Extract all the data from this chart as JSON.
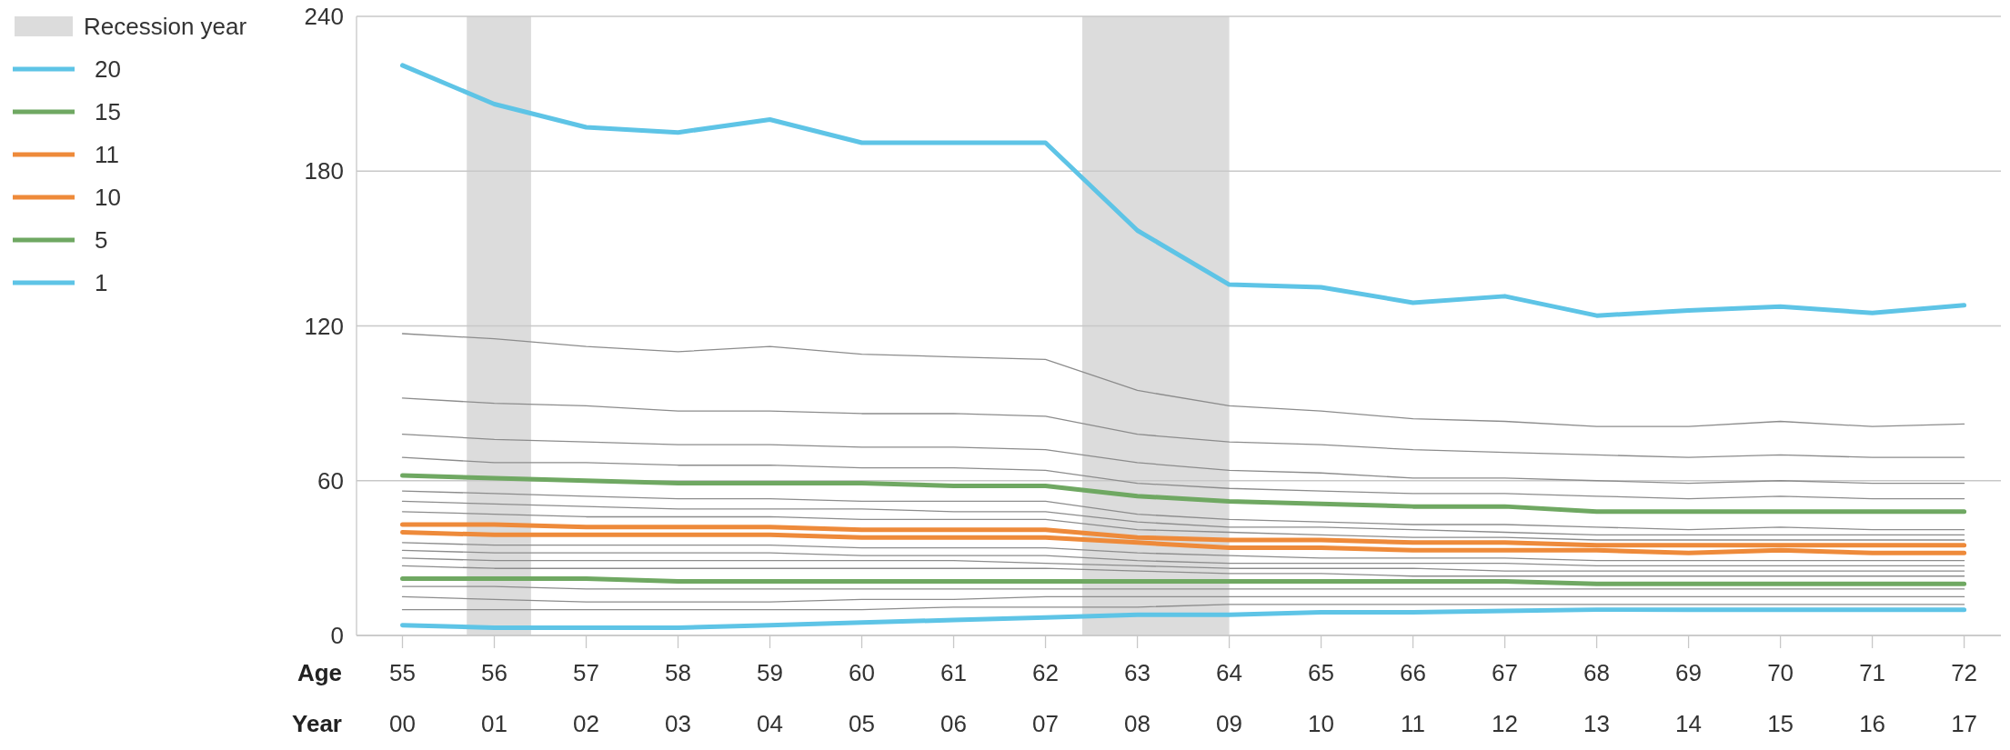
{
  "chart_data": {
    "type": "line",
    "xlabel": "Age",
    "x2label": "Year",
    "xlim": [
      54.5,
      72.4
    ],
    "xticks": [
      55,
      56,
      57,
      58,
      59,
      60,
      61,
      62,
      63,
      64,
      65,
      66,
      67,
      68,
      69,
      70,
      71,
      72
    ],
    "x2lim": [
      1999.5,
      2017.4
    ],
    "x2ticks": [
      {
        "value": 2000,
        "label": "00"
      },
      {
        "value": 2001,
        "label": "01"
      },
      {
        "value": 2002,
        "label": "02"
      },
      {
        "value": 2003,
        "label": "03"
      },
      {
        "value": 2004,
        "label": "04"
      },
      {
        "value": 2005,
        "label": "05"
      },
      {
        "value": 2006,
        "label": "06"
      },
      {
        "value": 2007,
        "label": "07"
      },
      {
        "value": 2008,
        "label": "08"
      },
      {
        "value": 2009,
        "label": "09"
      },
      {
        "value": 2010,
        "label": "10"
      },
      {
        "value": 2011,
        "label": "11"
      },
      {
        "value": 2012,
        "label": "12"
      },
      {
        "value": 2013,
        "label": "13"
      },
      {
        "value": 2014,
        "label": "14"
      },
      {
        "value": 2015,
        "label": "15"
      },
      {
        "value": 2016,
        "label": "16"
      },
      {
        "value": 2017,
        "label": "17"
      }
    ],
    "ylim": [
      0,
      240
    ],
    "yticks": [
      0,
      60,
      120,
      180,
      240
    ],
    "grid": "y",
    "legend": "left",
    "marker": "none",
    "line_style": "solid",
    "x": [
      55,
      56,
      57,
      58,
      59,
      60,
      61,
      62,
      63,
      64,
      65,
      66,
      67,
      68,
      69,
      70,
      71,
      72
    ],
    "bands": [
      {
        "axis": "x",
        "from": 55.7,
        "to": 56.4,
        "color": "#dcdcdc"
      },
      {
        "axis": "x",
        "from": 62.4,
        "to": 64,
        "color": "#dcdcdc"
      }
    ],
    "annotations": [
      "Recession year"
    ],
    "series": [
      {
        "color": "#8c8c8c",
        "values": [
          117,
          115,
          112,
          110,
          112,
          109,
          108,
          107,
          95,
          89,
          87,
          84,
          83,
          81,
          81,
          83,
          81,
          82
        ]
      },
      {
        "color": "#8c8c8c",
        "values": [
          92,
          90,
          89,
          87,
          87,
          86,
          86,
          85,
          78,
          75,
          74,
          72,
          71,
          70,
          69,
          70,
          69,
          69
        ]
      },
      {
        "color": "#8c8c8c",
        "values": [
          78,
          76,
          75,
          74,
          74,
          73,
          73,
          72,
          67,
          64,
          63,
          61,
          61,
          60,
          59,
          60,
          59,
          59
        ]
      },
      {
        "color": "#8c8c8c",
        "values": [
          69,
          67,
          67,
          66,
          66,
          65,
          65,
          64,
          59,
          57,
          56,
          55,
          55,
          54,
          53,
          54,
          53,
          53
        ]
      },
      {
        "color": "#8c8c8c",
        "values": [
          56,
          55,
          54,
          53,
          53,
          52,
          52,
          52,
          47,
          45,
          44,
          43,
          43,
          42,
          41,
          42,
          41,
          41
        ]
      },
      {
        "color": "#8c8c8c",
        "values": [
          52,
          51,
          50,
          49,
          49,
          49,
          48,
          48,
          44,
          42,
          42,
          41,
          40,
          39,
          39,
          39,
          39,
          39
        ]
      },
      {
        "color": "#8c8c8c",
        "values": [
          48,
          47,
          46,
          46,
          46,
          45,
          45,
          45,
          41,
          40,
          39,
          38,
          38,
          37,
          37,
          37,
          37,
          37
        ]
      },
      {
        "color": "#8c8c8c",
        "values": [
          36,
          35,
          35,
          35,
          35,
          34,
          34,
          34,
          32,
          31,
          30,
          30,
          30,
          29,
          29,
          29,
          29,
          29
        ]
      },
      {
        "color": "#8c8c8c",
        "values": [
          33,
          32,
          32,
          32,
          32,
          31,
          31,
          31,
          29,
          28,
          28,
          28,
          28,
          27,
          27,
          27,
          27,
          27
        ]
      },
      {
        "color": "#8c8c8c",
        "values": [
          30,
          29,
          29,
          29,
          29,
          29,
          29,
          28,
          27,
          26,
          26,
          26,
          25,
          25,
          25,
          25,
          25,
          25
        ]
      },
      {
        "color": "#8c8c8c",
        "values": [
          27,
          26,
          26,
          26,
          26,
          26,
          26,
          26,
          25,
          24,
          24,
          23,
          23,
          23,
          23,
          23,
          23,
          23
        ]
      },
      {
        "color": "#8c8c8c",
        "values": [
          19,
          19,
          18,
          18,
          18,
          18,
          18,
          18,
          18,
          18,
          18,
          18,
          18,
          18,
          18,
          18,
          18,
          18
        ]
      },
      {
        "color": "#8c8c8c",
        "values": [
          15,
          14,
          13,
          13,
          13,
          14,
          14,
          15,
          15,
          15,
          15,
          15,
          15,
          15,
          15,
          15,
          15,
          15
        ]
      },
      {
        "color": "#8c8c8c",
        "values": [
          10,
          10,
          10,
          10,
          10,
          10,
          11,
          11,
          11,
          12,
          12,
          12,
          12,
          12,
          12,
          12,
          12,
          12
        ]
      },
      {
        "name": "20",
        "color": "#5ec4e6",
        "values": [
          221,
          206,
          197,
          195,
          200,
          191,
          191,
          191,
          157,
          136,
          135,
          129,
          131.5,
          124,
          126,
          127.5,
          125,
          128
        ]
      },
      {
        "name": "15",
        "color": "#6fa862",
        "values": [
          62,
          61,
          60,
          59,
          59,
          59,
          58,
          58,
          54,
          52,
          51,
          50,
          50,
          48,
          48,
          48,
          48,
          48
        ]
      },
      {
        "name": "11",
        "color": "#ee8a3a",
        "values": [
          43,
          43,
          42,
          42,
          42,
          41,
          41,
          41,
          38,
          37,
          37,
          36,
          36,
          35,
          35,
          35,
          35,
          35
        ]
      },
      {
        "name": "10",
        "color": "#ee8a3a",
        "values": [
          40,
          39,
          39,
          39,
          39,
          38,
          38,
          38,
          36,
          34,
          34,
          33,
          33,
          33,
          32,
          33,
          32,
          32
        ]
      },
      {
        "name": "5",
        "color": "#6fa862",
        "values": [
          22,
          22,
          22,
          21,
          21,
          21,
          21,
          21,
          21,
          21,
          21,
          21,
          21,
          20,
          20,
          20,
          20,
          20
        ]
      },
      {
        "name": "1",
        "color": "#5ec4e6",
        "values": [
          4,
          3,
          3,
          3,
          4,
          5,
          6,
          7,
          8,
          8,
          9,
          9,
          9.5,
          10,
          10,
          10,
          10,
          10
        ]
      }
    ]
  }
}
